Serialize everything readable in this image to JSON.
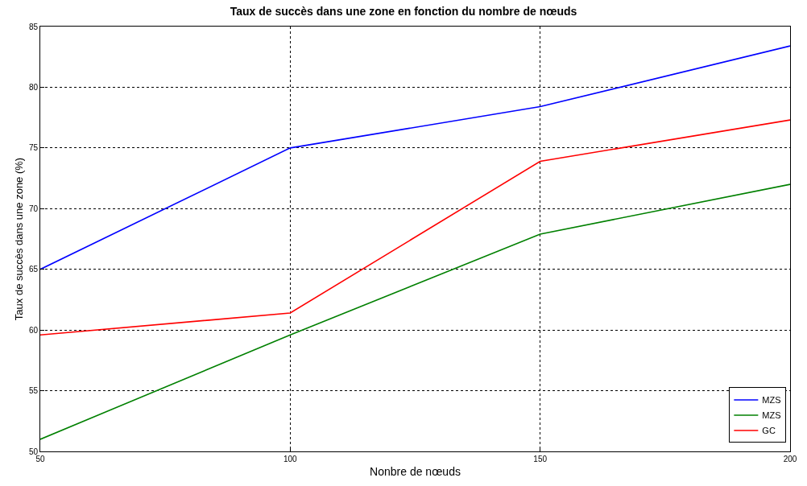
{
  "chart_data": {
    "type": "line",
    "title": "Taux de succès dans une zone en fonction du nombre de nœuds",
    "xlabel": "Nonbre de nœuds",
    "ylabel": "Taux de succès dans une zone (%)",
    "x": [
      50,
      100,
      150,
      200
    ],
    "series": [
      {
        "name": "MZS",
        "color": "#0000ff",
        "values": [
          65.0,
          75.0,
          78.4,
          83.4
        ]
      },
      {
        "name": "MZS",
        "color": "#008000",
        "values": [
          51.0,
          59.6,
          67.9,
          72.0
        ]
      },
      {
        "name": "GC",
        "color": "#ff0000",
        "values": [
          59.6,
          61.4,
          73.9,
          77.3
        ]
      }
    ],
    "xlim": [
      50,
      200
    ],
    "xticks": [
      50,
      100,
      150,
      200
    ],
    "ylim": [
      50,
      85
    ],
    "yticks": [
      50,
      55,
      60,
      65,
      70,
      75,
      80,
      85
    ],
    "grid": true,
    "legend": "bottom right",
    "marker": "none",
    "line_style": "solid"
  }
}
